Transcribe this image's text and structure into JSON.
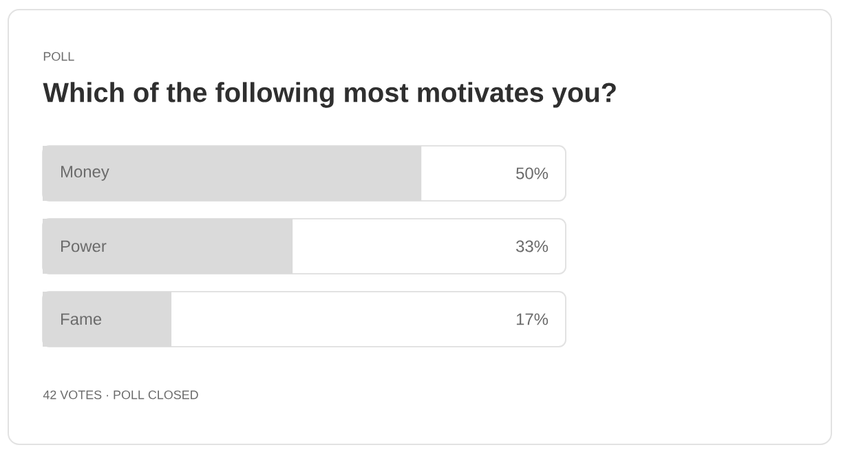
{
  "chart_data": {
    "type": "bar",
    "orientation": "horizontal",
    "title": "Which of the following most motivates you?",
    "categories": [
      "Money",
      "Power",
      "Fame"
    ],
    "values": [
      50,
      33,
      17
    ],
    "value_labels": [
      "50%",
      "33%",
      "17%"
    ],
    "color": "#dadada",
    "annotations": [
      "POLL",
      "42 VOTES · POLL CLOSED"
    ]
  }
}
